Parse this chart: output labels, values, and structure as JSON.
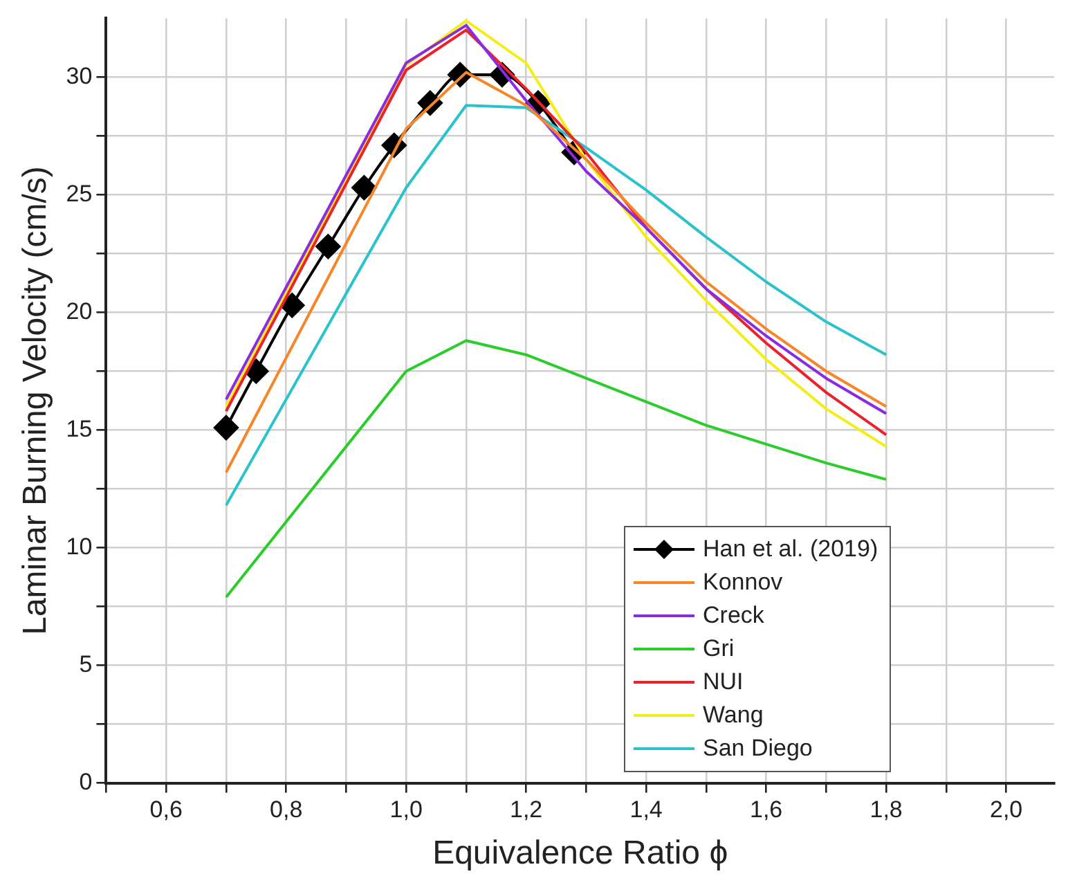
{
  "chart_data": {
    "type": "line",
    "xlabel": "Equivalence Ratio ϕ",
    "ylabel": "Laminar Burning Velocity (cm/s)",
    "xlim": [
      0.5,
      2.08
    ],
    "ylim": [
      0,
      32.5
    ],
    "xticks": [
      {
        "value": 0.5,
        "label": null
      },
      {
        "value": 0.6,
        "label": "0,6"
      },
      {
        "value": 0.7,
        "label": null
      },
      {
        "value": 0.8,
        "label": "0,8"
      },
      {
        "value": 0.9,
        "label": null
      },
      {
        "value": 1.0,
        "label": "1,0"
      },
      {
        "value": 1.1,
        "label": null
      },
      {
        "value": 1.2,
        "label": "1,2"
      },
      {
        "value": 1.3,
        "label": null
      },
      {
        "value": 1.4,
        "label": "1,4"
      },
      {
        "value": 1.5,
        "label": null
      },
      {
        "value": 1.6,
        "label": "1,6"
      },
      {
        "value": 1.7,
        "label": null
      },
      {
        "value": 1.8,
        "label": "1,8"
      },
      {
        "value": 1.9,
        "label": null
      },
      {
        "value": 2.0,
        "label": "2,0"
      }
    ],
    "yticks": [
      0,
      {
        "value": 2.5,
        "label": null
      },
      5,
      {
        "value": 7.5,
        "label": null
      },
      10,
      {
        "value": 12.5,
        "label": null
      },
      15,
      {
        "value": 17.5,
        "label": null
      },
      20,
      {
        "value": 22.5,
        "label": null
      },
      25,
      {
        "value": 27.5,
        "label": null
      },
      30
    ],
    "grid": true,
    "legend": "bottom right",
    "line_style": "solid",
    "x": [
      0.7,
      1.0,
      1.1,
      1.2,
      1.3,
      1.4,
      1.5,
      1.6,
      1.7,
      1.8
    ],
    "series": [
      {
        "name": "Han et al. (2019)",
        "color": "#000000",
        "marker": "diamond",
        "x": [
          0.7,
          0.75,
          0.81,
          0.87,
          0.93,
          0.98,
          1.04,
          1.09,
          1.16,
          1.22,
          1.28
        ],
        "values": [
          15.1,
          17.5,
          20.3,
          22.8,
          25.3,
          27.1,
          28.9,
          30.1,
          30.1,
          28.9,
          26.8
        ]
      },
      {
        "name": "Konnov",
        "color": "#f7862a",
        "values": [
          13.2,
          27.8,
          30.2,
          28.8,
          26.5,
          23.8,
          21.3,
          19.3,
          17.5,
          16.0
        ]
      },
      {
        "name": "Creck",
        "color": "#8a2be2",
        "values": [
          16.3,
          30.6,
          32.2,
          29.0,
          26.0,
          23.6,
          21.0,
          19.0,
          17.2,
          15.7
        ]
      },
      {
        "name": "Gri",
        "color": "#2dcc2d",
        "values": [
          7.9,
          17.5,
          18.8,
          18.2,
          17.2,
          16.2,
          15.2,
          14.4,
          13.6,
          12.9
        ]
      },
      {
        "name": "NUI",
        "color": "#e8232d",
        "values": [
          15.8,
          30.3,
          32.0,
          29.5,
          26.8,
          23.6,
          21.0,
          18.7,
          16.6,
          14.8
        ]
      },
      {
        "name": "Wang",
        "color": "#f5ed1a",
        "values": [
          16.0,
          30.5,
          32.4,
          30.6,
          26.5,
          23.2,
          20.5,
          18.0,
          15.9,
          14.3
        ]
      },
      {
        "name": "San Diego",
        "color": "#2ac3cc",
        "values": [
          11.8,
          25.3,
          28.8,
          28.7,
          27.0,
          25.2,
          23.2,
          21.3,
          19.6,
          18.2
        ]
      }
    ]
  }
}
